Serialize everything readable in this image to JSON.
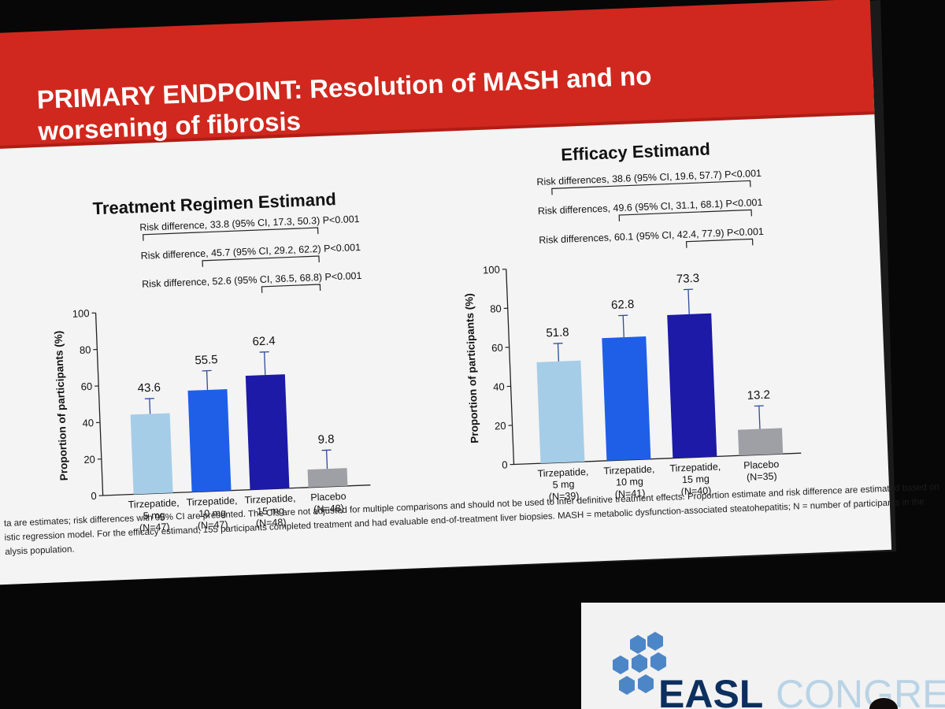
{
  "slide": {
    "title_line1": "PRIMARY ENDPOINT: Resolution of MASH and no",
    "title_line2": "worsening of fibrosis",
    "footnote_lines": [
      "ta are estimates; risk differences with 95% CI are presented. The CIs are not adjusted for multiple comparisons and should not be used to infer definitive treatment effects. Proportion estimate and risk difference are estimated based on",
      "istic regression model. For the efficacy estimand, 155 participants completed treatment and had evaluable end-of-treatment liver biopsies. MASH = metabolic dysfunction-associated steatohepatitis; N = number of participants in the",
      "alysis population."
    ]
  },
  "venue": {
    "logo_bold": "EASL",
    "logo_light": "CONGRES"
  },
  "colors": {
    "header_red": "#d0281e",
    "bar_5mg": "#a5cde8",
    "bar_10mg": "#1f5fe8",
    "bar_15mg": "#1c1aa6",
    "bar_placebo": "#9fa0a6"
  },
  "chart_data": [
    {
      "type": "bar",
      "title": "Treatment Regimen Estimand",
      "ylabel": "Proportion of participants (%)",
      "ylim": [
        0,
        100
      ],
      "yticks": [
        0,
        20,
        40,
        60,
        80,
        100
      ],
      "categories": [
        [
          "Tirzepatide,",
          "5 mg",
          "(N=47)"
        ],
        [
          "Tirzepatide,",
          "10 mg",
          "(N=47)"
        ],
        [
          "Tirzepatide,",
          "15 mg",
          "(N=48)"
        ],
        [
          "Placebo",
          "(N=48)"
        ]
      ],
      "values": [
        43.6,
        55.5,
        62.4,
        9.8
      ],
      "value_labels": [
        "43.6",
        "55.5",
        "62.4",
        "9.8"
      ],
      "error_upper": [
        52,
        66,
        75,
        20
      ],
      "comparisons": [
        {
          "from": 0,
          "to": 3,
          "label": "Risk difference, 33.8 (95% CI, 17.3, 50.3) P<0.001"
        },
        {
          "from": 1,
          "to": 3,
          "label": "Risk difference, 45.7 (95% CI, 29.2, 62.2) P<0.001"
        },
        {
          "from": 2,
          "to": 3,
          "label": "Risk difference, 52.6 (95% CI, 36.5, 68.8) P<0.001"
        }
      ]
    },
    {
      "type": "bar",
      "title": "Efficacy Estimand",
      "ylabel": "Proportion of participants (%)",
      "ylim": [
        0,
        100
      ],
      "yticks": [
        0,
        20,
        40,
        60,
        80,
        100
      ],
      "categories": [
        [
          "Tirzepatide,",
          "5 mg",
          "(N=39)"
        ],
        [
          "Tirzepatide,",
          "10 mg",
          "(N=41)"
        ],
        [
          "Tirzepatide,",
          "15 mg",
          "(N=40)"
        ],
        [
          "Placebo",
          "(N=35)"
        ]
      ],
      "values": [
        51.8,
        62.8,
        73.3,
        13.2
      ],
      "value_labels": [
        "51.8",
        "62.8",
        "73.3",
        "13.2"
      ],
      "error_upper": [
        61,
        74,
        86,
        25
      ],
      "comparisons": [
        {
          "from": 0,
          "to": 3,
          "label": "Risk differences, 38.6 (95% CI, 19.6, 57.7) P<0.001"
        },
        {
          "from": 1,
          "to": 3,
          "label": "Risk differences, 49.6 (95% CI, 31.1, 68.1) P<0.001"
        },
        {
          "from": 2,
          "to": 3,
          "label": "Risk differences, 60.1 (95% CI, 42.4, 77.9) P<0.001"
        }
      ]
    }
  ]
}
